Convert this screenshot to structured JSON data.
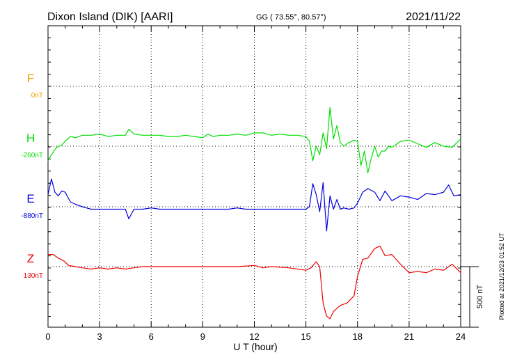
{
  "header": {
    "station": "Dixon Island (DIK)  [AARI]",
    "coords": "GG ( 73.55°,  80.57°)",
    "date": "2021/11/22"
  },
  "plotted_note": "Plotted at 2021/12/23 01:52 UT",
  "scale_label": "500 nT",
  "colors": {
    "F": "#f0a000",
    "H": "#00e000",
    "E": "#0000dd",
    "Z": "#ee0000"
  },
  "chart_data": {
    "type": "line",
    "xlabel": "U T (hour)",
    "xlim": [
      0,
      24
    ],
    "xticks": [
      0,
      3,
      6,
      9,
      12,
      15,
      18,
      21,
      24
    ],
    "scale_nT": 500,
    "series": [
      {
        "name": "F",
        "baseline_label": "0nT",
        "values": []
      },
      {
        "name": "H",
        "baseline_label": "-260nT",
        "x": [
          0,
          0.2,
          0.5,
          0.8,
          1,
          1.3,
          1.6,
          2,
          2.5,
          3,
          3.5,
          4,
          4.5,
          4.7,
          5,
          5.5,
          6,
          6.5,
          7,
          7.5,
          8,
          8.5,
          9,
          9.3,
          9.6,
          10,
          10.5,
          11,
          11.5,
          12,
          12.5,
          13,
          13.5,
          14,
          14.5,
          15,
          15.2,
          15.4,
          15.6,
          15.8,
          16,
          16.2,
          16.4,
          16.6,
          16.8,
          17,
          17.2,
          17.5,
          17.8,
          18,
          18.2,
          18.4,
          18.6,
          18.8,
          19,
          19.2,
          19.4,
          19.6,
          19.8,
          20,
          20.5,
          21,
          21.5,
          22,
          22.5,
          23,
          23.5,
          24
        ],
        "values": [
          -380,
          -330,
          -270,
          -250,
          -220,
          -180,
          -190,
          -170,
          -170,
          -160,
          -180,
          -170,
          -170,
          -120,
          -160,
          -170,
          -170,
          -170,
          -180,
          -180,
          -170,
          -180,
          -190,
          -160,
          -180,
          -170,
          -170,
          -160,
          -170,
          -150,
          -150,
          -170,
          -160,
          -170,
          -170,
          -180,
          -220,
          -380,
          -260,
          -330,
          -150,
          -280,
          60,
          -200,
          -90,
          -230,
          -260,
          -230,
          -210,
          -220,
          -420,
          -300,
          -480,
          -360,
          -260,
          -350,
          -300,
          -300,
          -260,
          -270,
          -220,
          -210,
          -240,
          -270,
          -230,
          -260,
          -270,
          -200
        ]
      },
      {
        "name": "E",
        "baseline_label": "-880nT",
        "x": [
          0,
          0.2,
          0.4,
          0.6,
          0.8,
          1,
          1.3,
          1.6,
          2,
          2.5,
          3,
          3.5,
          4,
          4.5,
          4.7,
          5,
          5.5,
          6,
          6.5,
          7,
          7.5,
          8,
          8.5,
          9,
          9.5,
          10,
          10.5,
          11,
          11.5,
          12,
          12.5,
          13,
          13.5,
          14,
          14.5,
          15,
          15.2,
          15.4,
          15.6,
          15.8,
          16,
          16.2,
          16.4,
          16.6,
          16.8,
          17,
          17.2,
          17.5,
          17.8,
          18,
          18.3,
          18.6,
          19,
          19.3,
          19.6,
          20,
          20.5,
          21,
          21.5,
          22,
          22.5,
          23,
          23.3,
          23.6,
          24
        ],
        "values": [
          -780,
          -650,
          -760,
          -790,
          -750,
          -760,
          -840,
          -860,
          -880,
          -900,
          -900,
          -900,
          -900,
          -900,
          -980,
          -900,
          -900,
          -890,
          -900,
          -900,
          -900,
          -900,
          -900,
          -900,
          -900,
          -900,
          -900,
          -890,
          -900,
          -900,
          -900,
          -900,
          -900,
          -900,
          -900,
          -900,
          -880,
          -690,
          -780,
          -920,
          -680,
          -1080,
          -790,
          -900,
          -820,
          -900,
          -890,
          -900,
          -890,
          -850,
          -760,
          -730,
          -760,
          -830,
          -750,
          -830,
          -790,
          -800,
          -820,
          -770,
          -780,
          -760,
          -700,
          -790,
          -780
        ]
      },
      {
        "name": "Z",
        "baseline_label": "130nT",
        "x": [
          0,
          0.3,
          0.6,
          0.9,
          1.2,
          1.6,
          2,
          2.5,
          3,
          3.5,
          4,
          4.5,
          5,
          5.5,
          6,
          7,
          8,
          9,
          10,
          11,
          12,
          12.5,
          13,
          14,
          15,
          15.3,
          15.6,
          15.8,
          16,
          16.2,
          16.4,
          16.6,
          17,
          17.4,
          17.8,
          18,
          18.3,
          18.6,
          19,
          19.3,
          19.6,
          20,
          20.5,
          21,
          21.5,
          22,
          22.5,
          23,
          23.5,
          24
        ],
        "values": [
          230,
          230,
          200,
          180,
          140,
          130,
          120,
          110,
          120,
          110,
          120,
          110,
          120,
          130,
          130,
          130,
          130,
          130,
          130,
          130,
          140,
          120,
          130,
          120,
          100,
          120,
          170,
          130,
          -170,
          -280,
          -300,
          -240,
          -190,
          -170,
          -110,
          50,
          190,
          200,
          280,
          300,
          220,
          230,
          150,
          80,
          90,
          80,
          110,
          100,
          150,
          80
        ]
      }
    ]
  }
}
